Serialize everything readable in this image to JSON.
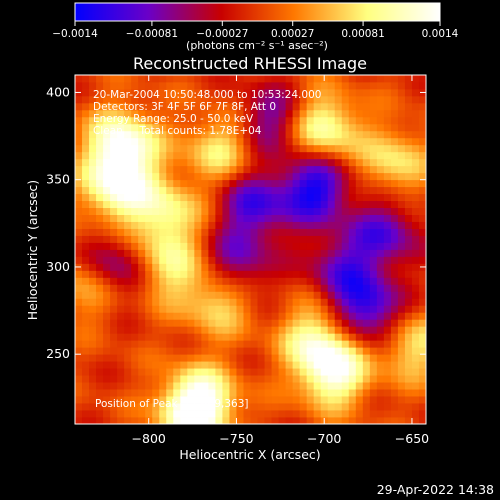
{
  "chart_data": {
    "type": "heatmap",
    "title": "Reconstructed RHESSI Image",
    "xlabel": "Heliocentric X (arcsec)",
    "ylabel": "Heliocentric Y (arcsec)",
    "xlim": [
      -842,
      -642
    ],
    "ylim": [
      210,
      410
    ],
    "x_ticks": [
      -800,
      -750,
      -700,
      -650
    ],
    "y_ticks": [
      250,
      300,
      350,
      400
    ],
    "x_tick_labels": [
      "−800",
      "−750",
      "−700",
      "−650"
    ],
    "y_tick_labels": [
      "250",
      "300",
      "350",
      "400"
    ],
    "colorbar": {
      "min": -0.0014,
      "max": 0.0014,
      "ticks": [
        -0.0014,
        -0.00081,
        -0.00027,
        0.00027,
        0.00081,
        0.0014
      ],
      "tick_labels": [
        "−0.0014",
        "−0.00081",
        "−0.00027",
        "0.00027",
        "0.00081",
        "0.0014"
      ],
      "unit_label": "(photons cm⁻² s⁻¹ asec⁻²)",
      "colors": [
        "#0000ff",
        "#6a00c8",
        "#c80000",
        "#ff7800",
        "#ffff80",
        "#ffffff"
      ]
    },
    "annotations": [
      "20-Mar-2004 10:50:48.000 to 10:53:24.000",
      "Detectors: 3F 4F 5F 6F 7F 8F, Att 0",
      "Energy Range: 25.0 - 50.0 keV",
      "Clean     Total counts: 1.78E+04"
    ],
    "peak_label": "Position of Peak = [-809,363]",
    "bright_features": [
      {
        "x": -815,
        "y": 370,
        "value": 0.0014
      },
      {
        "x": -818,
        "y": 345,
        "value": 0.0012
      },
      {
        "x": -790,
        "y": 330,
        "value": 0.0009
      },
      {
        "x": -790,
        "y": 300,
        "value": 0.0008
      },
      {
        "x": -760,
        "y": 282,
        "value": 0.0009
      },
      {
        "x": -700,
        "y": 380,
        "value": 0.0011
      },
      {
        "x": -760,
        "y": 368,
        "value": 0.0008
      },
      {
        "x": -695,
        "y": 240,
        "value": 0.0013
      },
      {
        "x": -705,
        "y": 260,
        "value": 0.0009
      },
      {
        "x": -775,
        "y": 215,
        "value": 0.0011
      },
      {
        "x": -660,
        "y": 360,
        "value": 0.0008
      },
      {
        "x": -650,
        "y": 255,
        "value": 0.0008
      },
      {
        "x": -835,
        "y": 290,
        "value": 0.0007
      },
      {
        "x": -770,
        "y": 225,
        "value": 0.0009
      }
    ],
    "dark_features": [
      {
        "x": -705,
        "y": 345,
        "value": -0.0013
      },
      {
        "x": -740,
        "y": 335,
        "value": -0.001
      },
      {
        "x": -675,
        "y": 275,
        "value": -0.0012
      },
      {
        "x": -750,
        "y": 300,
        "value": -0.0009
      },
      {
        "x": -820,
        "y": 300,
        "value": -0.0009
      },
      {
        "x": -665,
        "y": 320,
        "value": -0.0009
      },
      {
        "x": -690,
        "y": 300,
        "value": -0.0008
      },
      {
        "x": -730,
        "y": 385,
        "value": -0.0008
      }
    ]
  },
  "footer": {
    "timestamp": "29-Apr-2022 14:38"
  }
}
